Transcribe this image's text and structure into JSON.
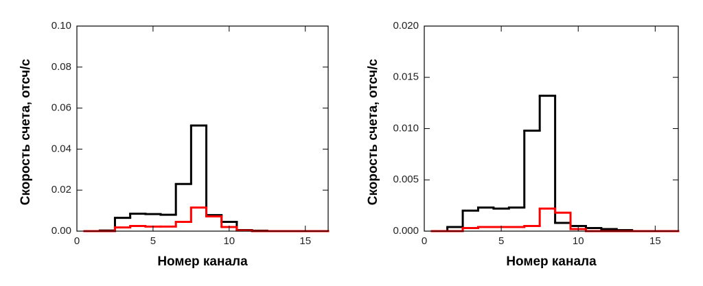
{
  "chart_data": [
    {
      "type": "histogram",
      "xlabel": "Номер канала",
      "ylabel": "Скорость счета, отсч/с",
      "bins": [
        0.5,
        1.5,
        2.5,
        3.5,
        4.5,
        5.5,
        6.5,
        7.5,
        8.5,
        9.5,
        10.5,
        11.5,
        12.5,
        13.5,
        14.5,
        15.5,
        16.5
      ],
      "series": [
        {
          "color": "#000000",
          "values": [
            0,
            0.0003,
            0.0065,
            0.0085,
            0.0083,
            0.008,
            0.023,
            0.0515,
            0.0078,
            0.0045,
            0.0005,
            0.0002,
            0,
            0,
            0,
            0
          ]
        },
        {
          "color": "#ff0000",
          "values": [
            0,
            0,
            0.0018,
            0.0025,
            0.0022,
            0.0022,
            0.0045,
            0.0115,
            0.0072,
            0.002,
            0.0003,
            0,
            0,
            0,
            0,
            0
          ]
        }
      ],
      "xlim": [
        0,
        16.5
      ],
      "xticks": [
        0,
        5,
        10,
        15
      ],
      "ylim": [
        0,
        0.1
      ],
      "yticks": [
        {
          "value": 0,
          "label": "0.00"
        },
        0.02,
        0.04,
        0.06,
        0.08,
        {
          "value": 0.1,
          "label": "0.10"
        }
      ]
    },
    {
      "type": "histogram",
      "xlabel": "Номер канала",
      "ylabel": "Скорость счета, отсч/с",
      "bins": [
        0.5,
        1.5,
        2.5,
        3.5,
        4.5,
        5.5,
        6.5,
        7.5,
        8.5,
        9.5,
        10.5,
        11.5,
        12.5,
        13.5,
        14.5,
        15.5,
        16.5
      ],
      "series": [
        {
          "color": "#000000",
          "values": [
            0,
            0.0004,
            0.002,
            0.0023,
            0.0022,
            0.0023,
            0.0098,
            0.0132,
            0.0008,
            0.0005,
            0.0003,
            0.0002,
            0.0001,
            0,
            0,
            0
          ]
        },
        {
          "color": "#ff0000",
          "values": [
            0,
            0,
            0.0003,
            0.0004,
            0.0004,
            0.0004,
            0.0005,
            0.0022,
            0.0018,
            0.0002,
            0,
            0,
            0,
            0,
            0,
            0
          ]
        }
      ],
      "xlim": [
        0,
        16.5
      ],
      "xticks": [
        0,
        5,
        10,
        15
      ],
      "ylim": [
        0,
        0.02
      ],
      "yticks": [
        {
          "value": 0,
          "label": "0.000"
        },
        0.005,
        {
          "value": 0.01,
          "label": "0.010"
        },
        0.015,
        {
          "value": 0.02,
          "label": "0.020"
        }
      ]
    }
  ]
}
